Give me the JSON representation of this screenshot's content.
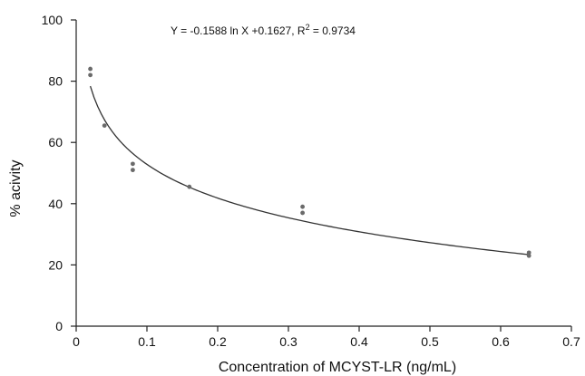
{
  "chart_data": {
    "type": "scatter",
    "title": "",
    "xlabel": "Concentration of MCYST-LR (ng/mL)",
    "ylabel": "% acivity",
    "xlim": [
      0,
      0.7
    ],
    "ylim": [
      0,
      100
    ],
    "x_ticks": [
      "0",
      "0.1",
      "0.2",
      "0.3",
      "0.4",
      "0.5",
      "0.6",
      "0.7"
    ],
    "y_ticks": [
      "0",
      "20",
      "40",
      "60",
      "80",
      "100"
    ],
    "grid": false,
    "series": [
      {
        "points": [
          {
            "x": 0.02,
            "y": 84
          },
          {
            "x": 0.02,
            "y": 82
          },
          {
            "x": 0.04,
            "y": 65.5
          },
          {
            "x": 0.08,
            "y": 53
          },
          {
            "x": 0.08,
            "y": 51
          },
          {
            "x": 0.16,
            "y": 45.5
          },
          {
            "x": 0.32,
            "y": 39
          },
          {
            "x": 0.32,
            "y": 37
          },
          {
            "x": 0.64,
            "y": 24
          },
          {
            "x": 0.64,
            "y": 23
          }
        ]
      }
    ],
    "trendline": {
      "type": "logarithmic",
      "slope": -0.1588,
      "intercept": 0.1627,
      "x_range": [
        0.02,
        0.64
      ],
      "equation_text": "Y = -0.1588 ln X +0.1627, R",
      "r2_superscript": "2",
      "r2_text": " = 0.9734"
    }
  }
}
